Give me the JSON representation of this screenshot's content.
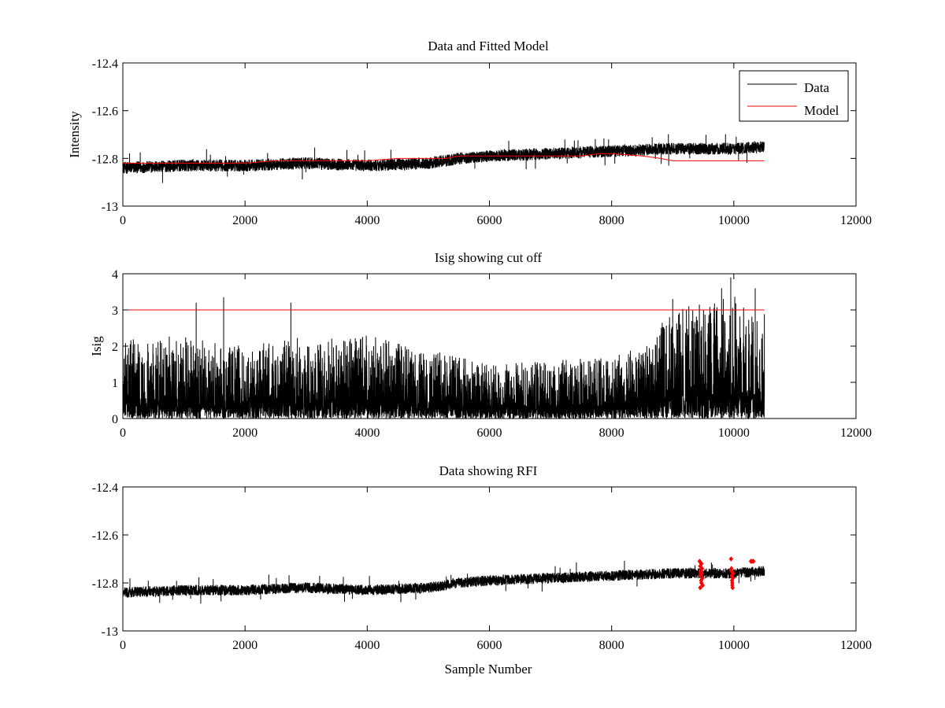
{
  "chart_data": [
    {
      "type": "line",
      "title": "Data and Fitted Model",
      "xlabel": "",
      "ylabel": "Intensity",
      "xlim": [
        0,
        12000
      ],
      "ylim": [
        -13,
        -12.4
      ],
      "xticks": [
        0,
        2000,
        4000,
        6000,
        8000,
        10000,
        12000
      ],
      "yticks": [
        -13,
        -12.8,
        -12.6,
        -12.4
      ],
      "xtick_labels": [
        "0",
        "2000",
        "4000",
        "6000",
        "8000",
        "10000",
        "12000"
      ],
      "ytick_labels": [
        "-13",
        "-12.8",
        "-12.6",
        "-12.4"
      ],
      "grid": false,
      "legend": {
        "position": "top-right",
        "entries": [
          "Data",
          "Model"
        ]
      },
      "series": [
        {
          "name": "Data",
          "color": "#000000",
          "style": "noisy-line",
          "n_samples": 10500,
          "trend_x": [
            0,
            1000,
            2000,
            3000,
            4000,
            5000,
            5500,
            6000,
            7000,
            8000,
            9000,
            10000,
            10500
          ],
          "trend_y": [
            -12.84,
            -12.83,
            -12.83,
            -12.82,
            -12.83,
            -12.82,
            -12.8,
            -12.79,
            -12.78,
            -12.77,
            -12.76,
            -12.76,
            -12.75
          ],
          "noise_amplitude": 0.025
        },
        {
          "name": "Model",
          "color": "#ff0000",
          "style": "line",
          "x": [
            0,
            1000,
            2000,
            2500,
            3000,
            3500,
            4000,
            4500,
            5000,
            5300,
            5500,
            6000,
            7000,
            7500,
            7800,
            8000,
            8500,
            8800,
            9000,
            9500,
            10000,
            10500
          ],
          "y": [
            -12.82,
            -12.82,
            -12.82,
            -12.81,
            -12.81,
            -12.81,
            -12.81,
            -12.8,
            -12.8,
            -12.8,
            -12.79,
            -12.79,
            -12.79,
            -12.79,
            -12.78,
            -12.78,
            -12.79,
            -12.8,
            -12.81,
            -12.81,
            -12.81,
            -12.81
          ]
        }
      ]
    },
    {
      "type": "line",
      "title": "Isig showing cut off",
      "xlabel": "",
      "ylabel": "Isig",
      "xlim": [
        0,
        12000
      ],
      "ylim": [
        0,
        4
      ],
      "xticks": [
        0,
        2000,
        4000,
        6000,
        8000,
        10000,
        12000
      ],
      "yticks": [
        0,
        1,
        2,
        3,
        4
      ],
      "xtick_labels": [
        "0",
        "2000",
        "4000",
        "6000",
        "8000",
        "10000",
        "12000"
      ],
      "ytick_labels": [
        "0",
        "1",
        "2",
        "3",
        "4"
      ],
      "grid": false,
      "series": [
        {
          "color": "#000000",
          "style": "noisy-spikes",
          "n_samples": 10500,
          "envelope_x": [
            0,
            1000,
            2000,
            3000,
            4000,
            5000,
            6000,
            7000,
            8000,
            8500,
            9000,
            9500,
            10000,
            10500
          ],
          "envelope_y": [
            2.2,
            2.3,
            2.0,
            2.3,
            2.3,
            1.9,
            1.5,
            1.6,
            1.7,
            2.0,
            3.0,
            3.2,
            3.4,
            3.0
          ],
          "spikes": [
            [
              1200,
              3.2
            ],
            [
              1650,
              3.35
            ],
            [
              2750,
              3.2
            ],
            [
              9000,
              3.3
            ],
            [
              9800,
              3.6
            ],
            [
              9950,
              3.9
            ],
            [
              10350,
              3.6
            ]
          ]
        },
        {
          "color": "#ff0000",
          "style": "line",
          "x": [
            0,
            10500
          ],
          "y": [
            3,
            3
          ]
        }
      ]
    },
    {
      "type": "line",
      "title": "Data showing RFI",
      "xlabel": "Sample Number",
      "ylabel": "",
      "xlim": [
        0,
        12000
      ],
      "ylim": [
        -13,
        -12.4
      ],
      "xticks": [
        0,
        2000,
        4000,
        6000,
        8000,
        10000,
        12000
      ],
      "yticks": [
        -13,
        -12.8,
        -12.6,
        -12.4
      ],
      "xtick_labels": [
        "0",
        "2000",
        "4000",
        "6000",
        "8000",
        "10000",
        "12000"
      ],
      "ytick_labels": [
        "-13",
        "-12.8",
        "-12.6",
        "-12.4"
      ],
      "grid": false,
      "series": [
        {
          "color": "#000000",
          "style": "noisy-line",
          "n_samples": 10500,
          "trend_x": [
            0,
            1000,
            2000,
            3000,
            4000,
            5000,
            5500,
            6000,
            7000,
            8000,
            9000,
            10000,
            10500
          ],
          "trend_y": [
            -12.84,
            -12.83,
            -12.83,
            -12.82,
            -12.83,
            -12.82,
            -12.8,
            -12.79,
            -12.78,
            -12.77,
            -12.76,
            -12.76,
            -12.75
          ],
          "noise_amplitude": 0.022
        },
        {
          "color": "#ff0000",
          "style": "markers",
          "x": [
            9440,
            9450,
            9455,
            9460,
            9465,
            9470,
            9475,
            9480,
            9485,
            9490,
            9450,
            9460,
            9470,
            9955,
            9960,
            9965,
            9970,
            9975,
            9980,
            9985,
            9990,
            9960,
            9975,
            10280,
            10300,
            10320
          ],
          "y": [
            -12.71,
            -12.73,
            -12.75,
            -12.77,
            -12.79,
            -12.8,
            -12.76,
            -12.74,
            -12.78,
            -12.81,
            -12.82,
            -12.76,
            -12.72,
            -12.7,
            -12.75,
            -12.77,
            -12.79,
            -12.81,
            -12.82,
            -12.78,
            -12.76,
            -12.74,
            -12.8,
            -12.71,
            -12.71,
            -12.71
          ]
        }
      ]
    }
  ]
}
